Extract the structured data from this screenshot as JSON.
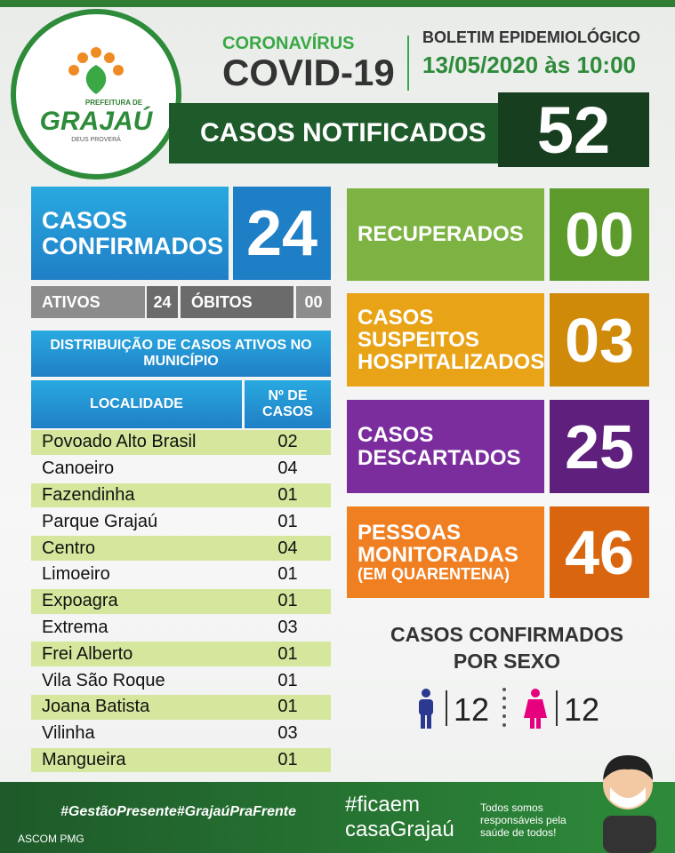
{
  "header": {
    "logo": {
      "prefix": "PREFEITURA DE",
      "name": "GRAJAÚ",
      "motto": "DEUS PROVERÁ"
    },
    "virus": "CORONAVÍRUS",
    "disease": "COVID-19",
    "bulletin": "BOLETIM EPIDEMIOLÓGICO",
    "date": "13/05/2020 às 10:00",
    "notified": {
      "label": "CASOS NOTIFICADOS",
      "value": "52"
    }
  },
  "confirmed": {
    "label": "CASOS CONFIRMADOS",
    "value": "24",
    "active": {
      "label": "ATIVOS",
      "value": "24"
    },
    "deaths": {
      "label": "ÓBITOS",
      "value": "00"
    }
  },
  "distribution": {
    "title": "DISTRIBUIÇÃO DE CASOS ATIVOS NO MUNICÍPIO",
    "columns": [
      "LOCALIDADE",
      "Nº DE CASOS"
    ],
    "rows": [
      [
        "Povoado Alto Brasil",
        "02"
      ],
      [
        "Canoeiro",
        "04"
      ],
      [
        "Fazendinha",
        "01"
      ],
      [
        "Parque Grajaú",
        "01"
      ],
      [
        "Centro",
        "04"
      ],
      [
        "Limoeiro",
        "01"
      ],
      [
        "Expoagra",
        "01"
      ],
      [
        "Extrema",
        "03"
      ],
      [
        "Frei Alberto",
        "01"
      ],
      [
        "Vila São Roque",
        "01"
      ],
      [
        "Joana Batista",
        "01"
      ],
      [
        "Vilinha",
        "03"
      ],
      [
        "Mangueira",
        "01"
      ]
    ]
  },
  "cards": [
    {
      "label": "RECUPERADOS",
      "value": "00"
    },
    {
      "label": "CASOS SUSPEITOS HOSPITALIZADOS",
      "value": "03"
    },
    {
      "label": "CASOS DESCARTADOS",
      "value": "25"
    },
    {
      "label": "PESSOAS MONITORADAS",
      "note": "(EM QUARENTENA)",
      "value": "46"
    }
  ],
  "by_sex": {
    "title": "CASOS CONFIRMADOS POR SEXO",
    "male": "12",
    "female": "12"
  },
  "footer": {
    "hashtags": "#GestãoPresente#GrajaúPraFrente",
    "credit": "ASCOM PMG",
    "campaign_1": "#ficaem",
    "campaign_2": "casaGrajaú",
    "message": "Todos somos responsáveis pela saúde de todos!"
  }
}
